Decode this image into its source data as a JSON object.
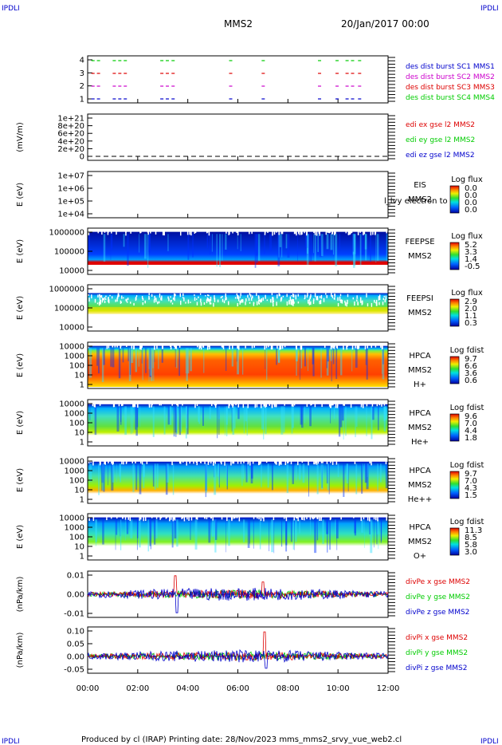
{
  "corner_label": "IPDLI",
  "header": {
    "spacecraft": "MMS2",
    "date": "20/Jan/2017 00:00"
  },
  "footer": {
    "text": "Produced by cl (IRAP)   Printing date: 28/Nov/2023   mms_mms2_srvy_vue_web2.cl"
  },
  "colors": {
    "red": "#dd0000",
    "green": "#00cc00",
    "blue": "#0000cc",
    "magenta": "#cc00cc"
  },
  "chart_data": {
    "type": "heatmap",
    "x_ticks": [
      "00:00",
      "02:00",
      "04:00",
      "06:00",
      "08:00",
      "10:00",
      "12:00"
    ],
    "xlim_hours": [
      0,
      12
    ],
    "panels": [
      {
        "id": "burst",
        "type": "scatter",
        "yticks": [
          "4",
          "3",
          "2",
          "1"
        ],
        "legend": [
          {
            "label": "des dist burst SC1 MMS1",
            "color": "#0000cc"
          },
          {
            "label": "des dist burst SC2 MMS2",
            "color": "#cc00cc"
          },
          {
            "label": "des dist burst SC3 MMS3",
            "color": "#dd0000"
          },
          {
            "label": "des dist burst SC4 MMS4",
            "color": "#00cc00"
          }
        ],
        "intervals_hours": [
          [
            0.15,
            0.55
          ],
          [
            1.0,
            1.6
          ],
          [
            2.9,
            3.2
          ],
          [
            3.35,
            3.45
          ],
          [
            5.65,
            5.7
          ],
          [
            6.95,
            7.05
          ],
          [
            9.2,
            9.3
          ],
          [
            9.9,
            10.05
          ],
          [
            10.3,
            10.7
          ],
          [
            10.8,
            11.0
          ]
        ]
      },
      {
        "id": "edi",
        "type": "line",
        "ylabel": "(mV/m)",
        "yticks": [
          "1e+21",
          "8e+20",
          "6e+20",
          "4e+20",
          "2e+20",
          "0"
        ],
        "legend": [
          {
            "label": "edi ex gse l2 MMS2",
            "color": "#dd0000"
          },
          {
            "label": "edi ey gse l2 MMS2",
            "color": "#00cc00"
          },
          {
            "label": "edi ez gse l2 MMS2",
            "color": "#0000cc"
          }
        ]
      },
      {
        "id": "eis",
        "ylabel": "E (eV)",
        "yticks": [
          "1e+07",
          "1e+06",
          "1e+05",
          "1e+04"
        ],
        "side_labels": [
          "EIS",
          "MMS2"
        ],
        "overlay_label": "l_lvy electron to",
        "cbar_title": "Log flux",
        "cbar_ticks": [
          "0.0",
          "0.0",
          "0.0",
          "0.0"
        ]
      },
      {
        "id": "feeps_e",
        "ylabel": "E (eV)",
        "yticks": [
          "1000000",
          "100000",
          "10000"
        ],
        "side_labels": [
          "FEEPSE",
          "MMS2"
        ],
        "cbar_title": "Log flux",
        "cbar_ticks": [
          "5.2",
          "3.3",
          "1.4",
          "-0.5"
        ]
      },
      {
        "id": "feeps_i",
        "ylabel": "E (eV)",
        "yticks": [
          "1000000",
          "100000",
          "10000"
        ],
        "side_labels": [
          "FEEPSI",
          "MMS2"
        ],
        "cbar_title": "Log flux",
        "cbar_ticks": [
          "2.9",
          "2.0",
          "1.1",
          "0.3"
        ]
      },
      {
        "id": "hpca_h",
        "ylabel": "E (eV)",
        "yticks": [
          "10000",
          "1000",
          "100",
          "10",
          "1"
        ],
        "side_labels": [
          "HPCA",
          "MMS2",
          "H+"
        ],
        "cbar_title": "Log fdist",
        "cbar_ticks": [
          "9.7",
          "6.6",
          "3.6",
          "0.6"
        ]
      },
      {
        "id": "hpca_he",
        "ylabel": "E (eV)",
        "yticks": [
          "10000",
          "1000",
          "100",
          "10",
          "1"
        ],
        "side_labels": [
          "HPCA",
          "MMS2",
          "He+"
        ],
        "cbar_title": "Log fdist",
        "cbar_ticks": [
          "9.6",
          "7.0",
          "4.4",
          "1.8"
        ]
      },
      {
        "id": "hpca_he2",
        "ylabel": "E (eV)",
        "yticks": [
          "10000",
          "1000",
          "100",
          "10",
          "1"
        ],
        "side_labels": [
          "HPCA",
          "MMS2",
          "He++"
        ],
        "cbar_title": "Log fdist",
        "cbar_ticks": [
          "9.7",
          "7.0",
          "4.3",
          "1.5"
        ]
      },
      {
        "id": "hpca_o",
        "ylabel": "E (eV)",
        "yticks": [
          "10000",
          "1000",
          "100",
          "10",
          "1"
        ],
        "side_labels": [
          "HPCA",
          "MMS2",
          "O+"
        ],
        "cbar_title": "Log fdist",
        "cbar_ticks": [
          "11.3",
          "8.5",
          "5.8",
          "3.0"
        ]
      },
      {
        "id": "divpe",
        "type": "line",
        "ylabel": "(nPa/km)",
        "yticks": [
          "0.01",
          "0.00",
          "-0.01"
        ],
        "ylim": [
          -0.015,
          0.015
        ],
        "legend": [
          {
            "label": "divPe x gse MMS2",
            "color": "#dd0000"
          },
          {
            "label": "divPe y gse MMS2",
            "color": "#00cc00"
          },
          {
            "label": "divPe z gse MMS2",
            "color": "#0000cc"
          }
        ]
      },
      {
        "id": "divpi",
        "type": "line",
        "ylabel": "(nPa/km)",
        "yticks": [
          "0.10",
          "0.05",
          "0.00",
          "-0.05"
        ],
        "ylim": [
          -0.07,
          0.12
        ],
        "legend": [
          {
            "label": "divPi x gse MMS2",
            "color": "#dd0000"
          },
          {
            "label": "divPi y gse MMS2",
            "color": "#00cc00"
          },
          {
            "label": "divPi z gse MMS2",
            "color": "#0000cc"
          }
        ]
      }
    ]
  }
}
